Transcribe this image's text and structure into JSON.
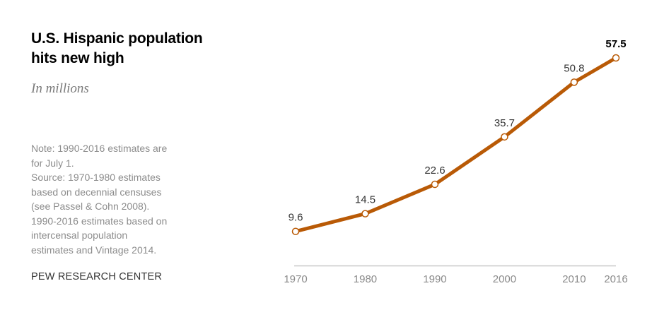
{
  "header": {
    "title_lines": [
      "U.S. Hispanic population",
      "hits new high"
    ],
    "subtitle": "In millions"
  },
  "notes": {
    "lines": [
      "Note: 1990-2016 estimates are",
      "for July 1.",
      "Source: 1970-1980 estimates",
      "based on decennial censuses",
      "(see Passel & Cohn 2008).",
      "1990-2016 estimates based on",
      "intercensal population",
      "estimates and Vintage 2014."
    ],
    "credit": "PEW RESEARCH CENTER"
  },
  "colors": {
    "line": "#B95A06",
    "marker_fill": "#ffffff",
    "axis": "#c8c8c8",
    "tick_text": "#8a8a8a",
    "label_text": "#333333"
  },
  "chart_data": {
    "type": "line",
    "title": "U.S. Hispanic population hits new high",
    "subtitle": "In millions",
    "xlabel": "",
    "ylabel": "",
    "x": [
      1970,
      1980,
      1990,
      2000,
      2010,
      2016
    ],
    "series": [
      {
        "name": "U.S. Hispanic population (millions)",
        "values": [
          9.6,
          14.5,
          22.6,
          35.7,
          50.8,
          57.5
        ]
      }
    ],
    "data_labels": [
      "9.6",
      "14.5",
      "22.6",
      "35.7",
      "50.8",
      "57.5"
    ],
    "highlighted_label_index": 5,
    "tick_labels": [
      "1970",
      "1980",
      "1990",
      "2000",
      "2010",
      "2016"
    ],
    "xlim": [
      1970,
      2016
    ],
    "ylim": [
      0,
      57.5
    ],
    "grid": false,
    "legend": "none"
  }
}
